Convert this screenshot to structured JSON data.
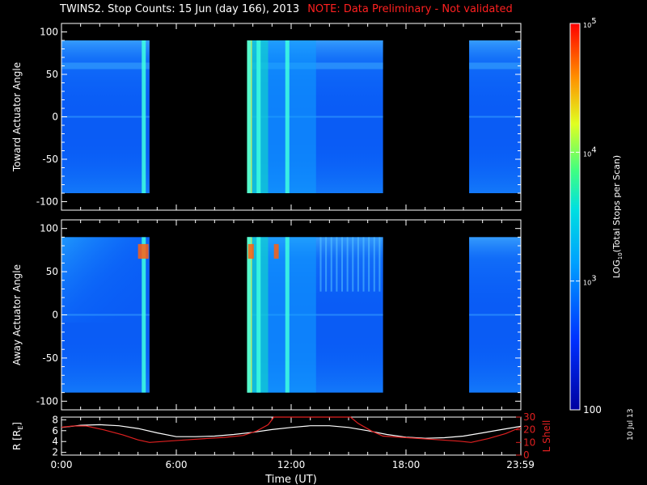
{
  "header": {
    "title": "TWINS2. Stop Counts: 15 Jun (day 166), 2013",
    "note": "NOTE: Data Preliminary - Not validated"
  },
  "footer": {
    "datestamp": "10 Jul 13"
  },
  "colors": {
    "background": "#000000",
    "axes": "#ffffff",
    "note": "#ff2020",
    "r_line": "#ffffff",
    "lshell_line": "#e02020"
  },
  "chart_data": [
    {
      "type": "heatmap",
      "title": "",
      "ylabel": "Toward Actuator Angle",
      "ylim": [
        -110,
        110
      ],
      "yticks": [
        100,
        50,
        0,
        -50,
        -100
      ],
      "y_data_range": [
        -90,
        90
      ],
      "xlim": [
        0,
        24
      ],
      "x_unit": "hours UT",
      "data_intervals_hours": [
        [
          0,
          4.6
        ],
        [
          9.7,
          16.8
        ],
        [
          21.3,
          24
        ]
      ],
      "bright_columns_hours": [
        4.3,
        9.8,
        10.3,
        11.8
      ],
      "angle_band_deg": 60
    },
    {
      "type": "heatmap",
      "title": "",
      "ylabel": "Away Actuator Angle",
      "ylim": [
        -110,
        110
      ],
      "yticks": [
        100,
        50,
        0,
        -50,
        -100
      ],
      "y_data_range": [
        -90,
        90
      ],
      "xlim": [
        0,
        24
      ],
      "x_unit": "hours UT",
      "data_intervals_hours": [
        [
          0,
          4.6
        ],
        [
          9.7,
          16.8
        ],
        [
          21.3,
          24
        ]
      ],
      "bright_columns_hours": [
        4.3,
        9.8,
        10.3,
        11.8
      ]
    },
    {
      "type": "line",
      "title": "",
      "ylabel_left": "R [RE]",
      "ylabel_left_main": "R [R",
      "ylabel_left_sub": "E",
      "ylabel_left_tail": "]",
      "ylabel_right": "L Shell",
      "ylim_left": [
        1.5,
        8.5
      ],
      "yticks_left": [
        2,
        4,
        6,
        8
      ],
      "ylim_right": [
        0,
        30
      ],
      "yticks_right": [
        0,
        10,
        20,
        30
      ],
      "xlabel": "Time (UT)",
      "xlim": [
        0,
        24
      ],
      "xtick_labels": [
        "0:00",
        "6:00",
        "12:00",
        "18:00",
        "23:59"
      ],
      "xtick_values": [
        0,
        6,
        12,
        18,
        23.983
      ],
      "series": [
        {
          "axis": "left",
          "x": [
            0,
            1,
            2,
            3,
            4,
            5,
            6,
            7,
            8,
            9,
            10,
            11,
            12,
            13,
            14,
            15,
            16,
            17,
            18,
            19,
            20,
            21,
            22,
            23,
            24
          ],
          "values": [
            6.6,
            7.0,
            7.1,
            6.9,
            6.4,
            5.6,
            4.9,
            4.9,
            5.0,
            5.3,
            5.7,
            6.2,
            6.6,
            6.9,
            6.9,
            6.6,
            6.0,
            5.3,
            4.8,
            4.6,
            4.7,
            5.0,
            5.6,
            6.2,
            6.8
          ]
        },
        {
          "axis": "right",
          "x": [
            0,
            0.6,
            1.3,
            2.2,
            3.2,
            4.0,
            4.6,
            5.5,
            6.5,
            7.5,
            8.5,
            9.5,
            10.2,
            10.8,
            11.1,
            15.1,
            15.5,
            16.2,
            16.8,
            17.8,
            18.8,
            19.8,
            20.8,
            21.4,
            22.3,
            23.2,
            24
          ],
          "values": [
            22,
            23,
            23,
            20,
            16,
            12,
            10,
            11,
            12,
            13,
            14,
            15.5,
            19,
            24,
            30,
            30,
            25,
            19,
            15,
            14,
            13,
            12,
            11,
            10,
            13,
            17,
            22
          ]
        }
      ]
    },
    {
      "type": "heatmap",
      "title": "",
      "colorbar": true,
      "label": "LOG10(Total Stops per Scan)",
      "label_main": "LOG",
      "label_sub": "10",
      "label_tail": "(Total Stops per Scan)",
      "scale": "log",
      "range": [
        100,
        100000
      ],
      "tick_labels": [
        "10",
        "10",
        "10",
        "100"
      ],
      "tick_exponents": [
        "5",
        "4",
        "3",
        ""
      ],
      "tick_values": [
        100000,
        10000,
        1000,
        100
      ]
    }
  ]
}
